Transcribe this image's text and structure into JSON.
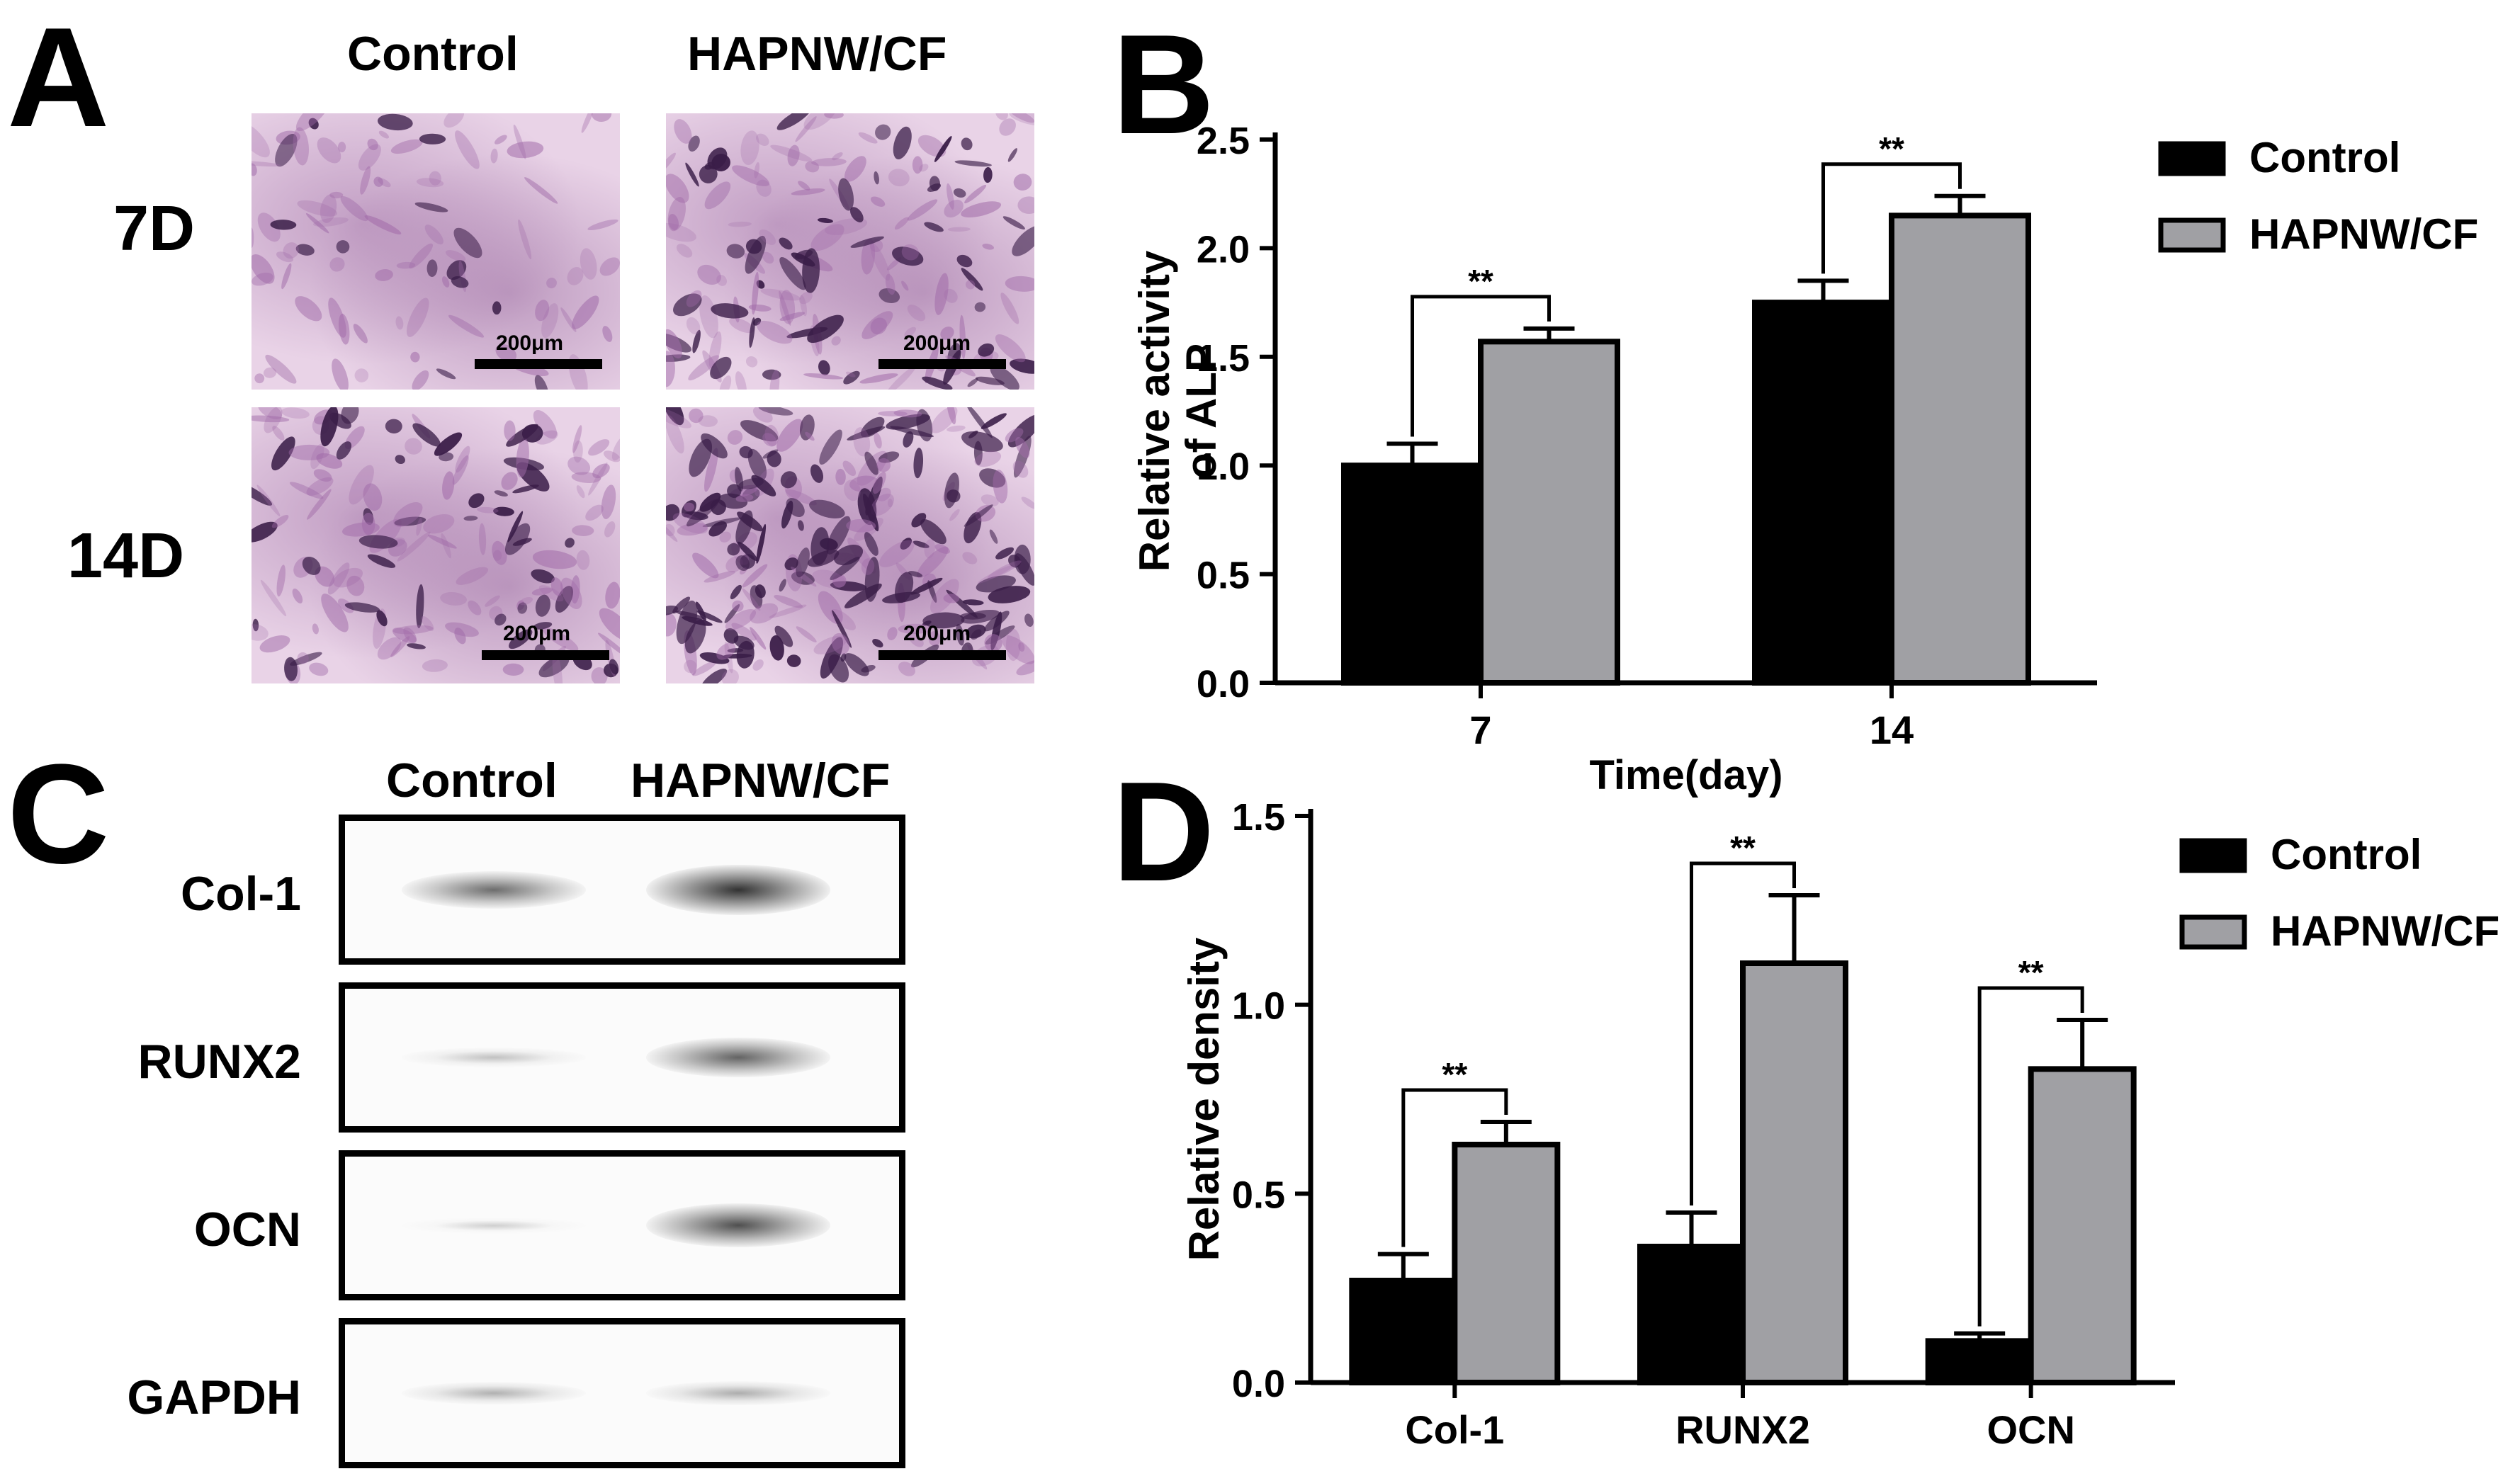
{
  "panel_a": {
    "letter": "A",
    "col_headers": [
      "Control",
      "HAPNW/CF"
    ],
    "row_labels": [
      "7D",
      "14D"
    ],
    "scale_bar": "200μm",
    "stain_colors": {
      "background": "#e9d3e7",
      "cells": "#3a1d48"
    }
  },
  "panel_b": {
    "letter": "B",
    "chart_data": {
      "type": "bar",
      "categories": [
        "7",
        "14"
      ],
      "xlabel": "Time(day)",
      "ylabel": "Relative activity of ALP",
      "ylabel_lines": [
        "Relative activity",
        "of ALP"
      ],
      "ylim": [
        0,
        2.5
      ],
      "yticks": [
        "0.0",
        "0.5",
        "1.0",
        "1.5",
        "2.0",
        "2.5"
      ],
      "series": [
        {
          "name": "Control",
          "values": [
            1.0,
            1.75
          ],
          "errors": [
            0.1,
            0.1
          ],
          "color": "#000000"
        },
        {
          "name": "HAPNW/CF",
          "values": [
            1.57,
            2.15
          ],
          "errors": [
            0.06,
            0.09
          ],
          "color": "#a0a0a4"
        }
      ],
      "significance": [
        "**",
        "**"
      ],
      "legend": "top-right"
    }
  },
  "panel_c": {
    "letter": "C",
    "col_headers": [
      "Control",
      "HAPNW/CF"
    ],
    "bands": [
      {
        "label": "Col-1",
        "control": 0.55,
        "treated": 0.85
      },
      {
        "label": "RUNX2",
        "control": 0.12,
        "treated": 0.6
      },
      {
        "label": "OCN",
        "control": 0.05,
        "treated": 0.7
      },
      {
        "label": "GAPDH",
        "control": 0.2,
        "treated": 0.22
      }
    ]
  },
  "panel_d": {
    "letter": "D",
    "chart_data": {
      "type": "bar",
      "categories": [
        "Col-1",
        "RUNX2",
        "OCN"
      ],
      "xlabel": "",
      "ylabel": "Relative density",
      "ylim": [
        0,
        1.5
      ],
      "yticks": [
        "0.0",
        "0.5",
        "1.0",
        "1.5"
      ],
      "series": [
        {
          "name": "Control",
          "values": [
            0.27,
            0.36,
            0.11
          ],
          "errors": [
            0.07,
            0.09,
            0.02
          ],
          "color": "#000000"
        },
        {
          "name": "HAPNW/CF",
          "values": [
            0.63,
            1.11,
            0.83
          ],
          "errors": [
            0.06,
            0.18,
            0.13
          ],
          "color": "#a0a0a4"
        }
      ],
      "significance": [
        "**",
        "**",
        "**"
      ],
      "legend": "top-right"
    }
  }
}
